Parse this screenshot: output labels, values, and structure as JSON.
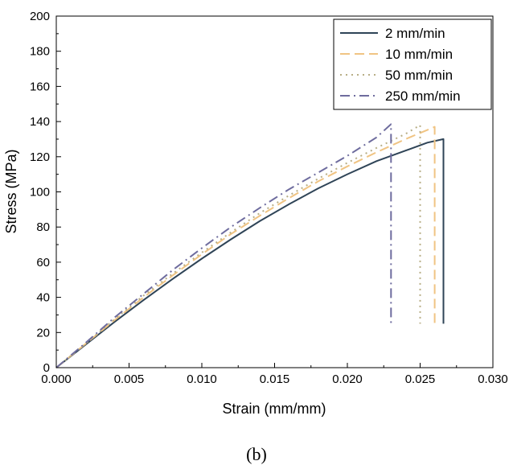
{
  "chart_data": {
    "type": "line",
    "title": "",
    "xlabel": "Strain (mm/mm)",
    "ylabel": "Stress (MPa)",
    "xlim": [
      0,
      0.03
    ],
    "ylim": [
      0,
      200
    ],
    "x_ticks": [
      "0.000",
      "0.005",
      "0.010",
      "0.015",
      "0.020",
      "0.025",
      "0.030"
    ],
    "y_ticks": [
      "0",
      "20",
      "40",
      "60",
      "80",
      "100",
      "120",
      "140",
      "160",
      "180",
      "200"
    ],
    "grid": false,
    "legend_position": "top-right",
    "series": [
      {
        "name": "2 mm/min",
        "color": "#2f4457",
        "dash": "solid",
        "x": [
          0,
          0.002,
          0.004,
          0.006,
          0.008,
          0.01,
          0.012,
          0.014,
          0.016,
          0.018,
          0.02,
          0.022,
          0.024,
          0.0255,
          0.0266,
          0.0266
        ],
        "y": [
          0,
          13,
          26,
          38.5,
          50.5,
          62,
          73,
          83.5,
          93,
          102,
          110,
          117.5,
          123.5,
          128,
          130,
          25
        ]
      },
      {
        "name": "10 mm/min",
        "color": "#f0c483",
        "dash": "dash",
        "x": [
          0,
          0.002,
          0.004,
          0.006,
          0.008,
          0.01,
          0.012,
          0.014,
          0.016,
          0.018,
          0.02,
          0.022,
          0.024,
          0.026,
          0.026
        ],
        "y": [
          0,
          13.5,
          27,
          40,
          52.5,
          64.5,
          76,
          86.5,
          96.5,
          106,
          114.5,
          122.5,
          130,
          137,
          25
        ]
      },
      {
        "name": "50 mm/min",
        "color": "#b8ae86",
        "dash": "dot",
        "x": [
          0,
          0.002,
          0.004,
          0.006,
          0.008,
          0.01,
          0.012,
          0.014,
          0.016,
          0.018,
          0.02,
          0.022,
          0.024,
          0.025,
          0.025
        ],
        "y": [
          0,
          13.5,
          27.5,
          41,
          53.5,
          65.5,
          77,
          88,
          98,
          107.5,
          116.5,
          125,
          133,
          138,
          25
        ]
      },
      {
        "name": "250 mm/min",
        "color": "#6e6c9e",
        "dash": "dashdot",
        "x": [
          0,
          0.002,
          0.004,
          0.006,
          0.008,
          0.01,
          0.012,
          0.014,
          0.016,
          0.018,
          0.02,
          0.022,
          0.023,
          0.023
        ],
        "y": [
          0,
          14,
          28.5,
          42,
          55.5,
          68,
          80,
          91,
          101.5,
          111,
          120.5,
          131,
          138.5,
          25
        ]
      }
    ],
    "caption": "(b)"
  }
}
